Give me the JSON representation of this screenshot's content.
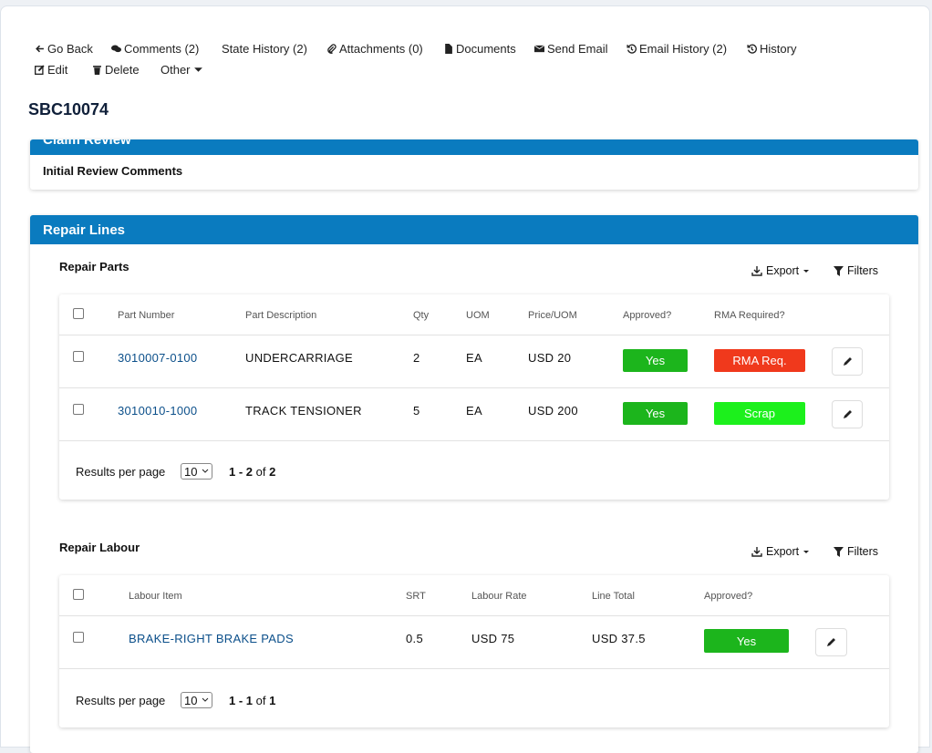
{
  "toolbar": [
    "Go Back",
    "Comments (2)",
    "State History (2)",
    "Attachments (0)",
    "Documents",
    "Send Email",
    "Email History (2)",
    "History",
    "Edit",
    "Delete",
    "Other"
  ],
  "record_id": "SBC10074",
  "claim_review": {
    "title": "Claim Review",
    "field": "Initial Review Comments"
  },
  "repair_lines": {
    "title": "Repair Lines",
    "parts": {
      "title": "Repair Parts",
      "export": "Export",
      "filters": "Filters",
      "columns": [
        "Part Number",
        "Part Description",
        "Qty",
        "UOM",
        "Price/UOM",
        "Approved?",
        "RMA Required?"
      ],
      "rows": [
        [
          "3010007-0100",
          "UNDERCARRIAGE",
          "2",
          "EA",
          "USD 20",
          "Yes",
          "RMA Req."
        ],
        [
          "3010010-1000",
          "TRACK TENSIONER",
          "5",
          "EA",
          "USD 200",
          "Yes",
          "Scrap"
        ]
      ],
      "pager": {
        "label": "Results per page",
        "per_page": "10",
        "range": "1 - 2",
        "of": "of",
        "total": "2"
      }
    },
    "labour": {
      "title": "Repair Labour",
      "export": "Export",
      "filters": "Filters",
      "columns": [
        "Labour Item",
        "SRT",
        "Labour Rate",
        "Line Total",
        "Approved?"
      ],
      "rows": [
        [
          "BRAKE-RIGHT BRAKE PADS",
          "0.5",
          "USD 75",
          "USD 37.5",
          "Yes"
        ]
      ],
      "pager": {
        "label": "Results per page",
        "per_page": "10",
        "range": "1 - 1",
        "of": "of",
        "total": "1"
      }
    }
  }
}
